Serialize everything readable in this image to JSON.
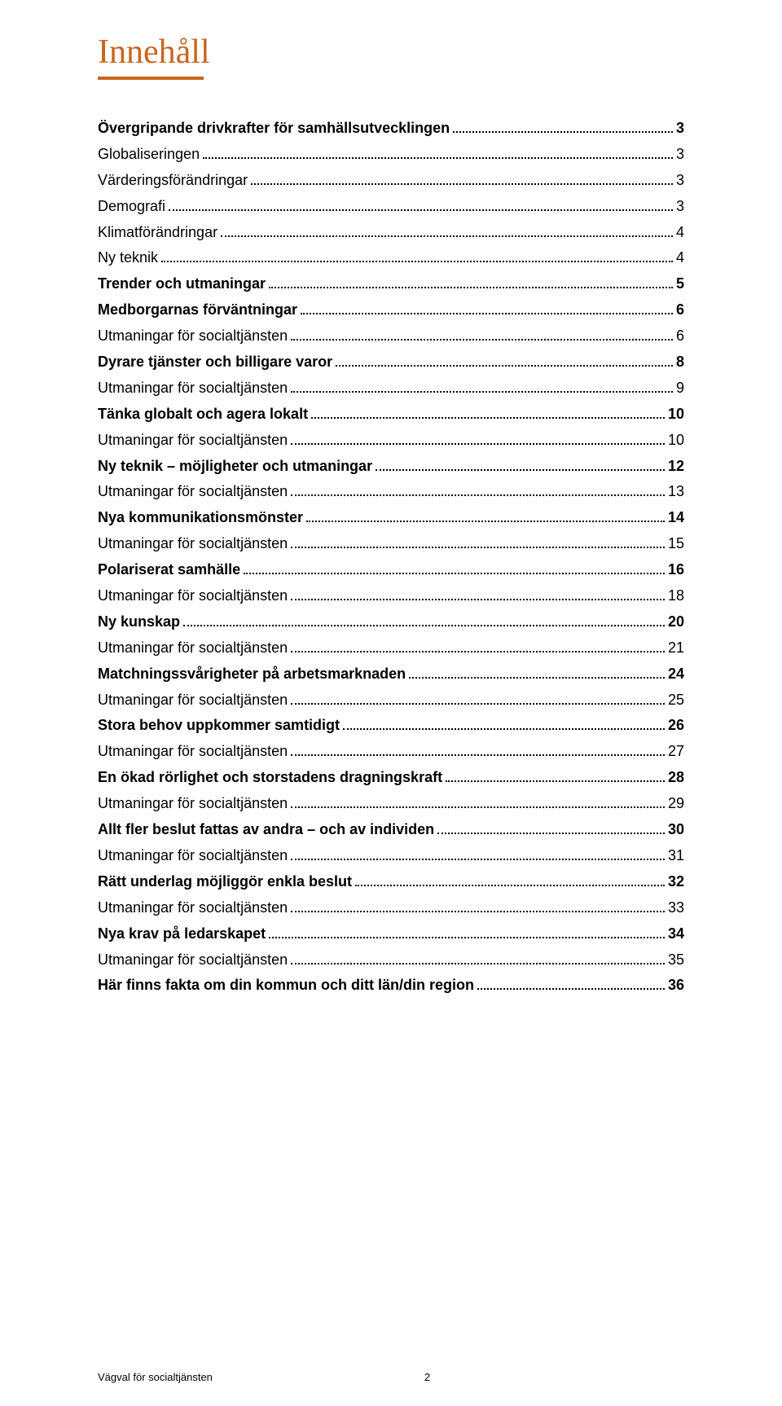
{
  "colors": {
    "accent": "#c9661e",
    "text": "#000000",
    "background": "#ffffff"
  },
  "typography": {
    "title_font": "Georgia, serif",
    "title_size_pt": 32,
    "body_font": "Arial, sans-serif",
    "body_size_pt": 14
  },
  "title": "Innehåll",
  "toc": [
    {
      "text": "Övergripande drivkrafter för samhällsutvecklingen",
      "page": "3",
      "bold": true
    },
    {
      "text": "Globaliseringen",
      "page": "3",
      "bold": false
    },
    {
      "text": "Värderingsförändringar",
      "page": "3",
      "bold": false
    },
    {
      "text": "Demografi",
      "page": "3",
      "bold": false
    },
    {
      "text": "Klimatförändringar",
      "page": "4",
      "bold": false
    },
    {
      "text": "Ny teknik",
      "page": "4",
      "bold": false
    },
    {
      "text": "Trender och utmaningar",
      "page": "5",
      "bold": true
    },
    {
      "text": "Medborgarnas förväntningar",
      "page": "6",
      "bold": true
    },
    {
      "text": "Utmaningar för socialtjänsten",
      "page": "6",
      "bold": false
    },
    {
      "text": "Dyrare tjänster och billigare varor",
      "page": "8",
      "bold": true
    },
    {
      "text": "Utmaningar för socialtjänsten",
      "page": "9",
      "bold": false
    },
    {
      "text": "Tänka globalt och agera lokalt",
      "page": "10",
      "bold": true
    },
    {
      "text": "Utmaningar för socialtjänsten",
      "page": "10",
      "bold": false
    },
    {
      "text": "Ny teknik – möjligheter och utmaningar",
      "page": "12",
      "bold": true
    },
    {
      "text": "Utmaningar för socialtjänsten",
      "page": "13",
      "bold": false
    },
    {
      "text": "Nya kommunikationsmönster",
      "page": "14",
      "bold": true
    },
    {
      "text": "Utmaningar för socialtjänsten",
      "page": "15",
      "bold": false
    },
    {
      "text": "Polariserat samhälle",
      "page": "16",
      "bold": true
    },
    {
      "text": "Utmaningar för socialtjänsten",
      "page": "18",
      "bold": false
    },
    {
      "text": "Ny kunskap",
      "page": "20",
      "bold": true
    },
    {
      "text": "Utmaningar för socialtjänsten",
      "page": "21",
      "bold": false
    },
    {
      "text": "Matchningssvårigheter på arbetsmarknaden",
      "page": "24",
      "bold": true
    },
    {
      "text": "Utmaningar för socialtjänsten",
      "page": "25",
      "bold": false
    },
    {
      "text": "Stora behov uppkommer samtidigt",
      "page": "26",
      "bold": true
    },
    {
      "text": "Utmaningar för socialtjänsten",
      "page": "27",
      "bold": false
    },
    {
      "text": "En ökad rörlighet och storstadens dragningskraft",
      "page": "28",
      "bold": true
    },
    {
      "text": "Utmaningar för socialtjänsten",
      "page": "29",
      "bold": false
    },
    {
      "text": "Allt fler beslut fattas av andra – och av individen",
      "page": "30",
      "bold": true
    },
    {
      "text": "Utmaningar för socialtjänsten",
      "page": "31",
      "bold": false
    },
    {
      "text": "Rätt underlag möjliggör enkla beslut",
      "page": "32",
      "bold": true
    },
    {
      "text": "Utmaningar för socialtjänsten",
      "page": "33",
      "bold": false
    },
    {
      "text": "Nya krav på ledarskapet",
      "page": "34",
      "bold": true
    },
    {
      "text": "Utmaningar för socialtjänsten",
      "page": "35",
      "bold": false
    },
    {
      "text": "Här finns fakta om din kommun och ditt län/din region",
      "page": "36",
      "bold": true
    }
  ],
  "footer": {
    "title": "Vägval för socialtjänsten",
    "page_number": "2"
  }
}
